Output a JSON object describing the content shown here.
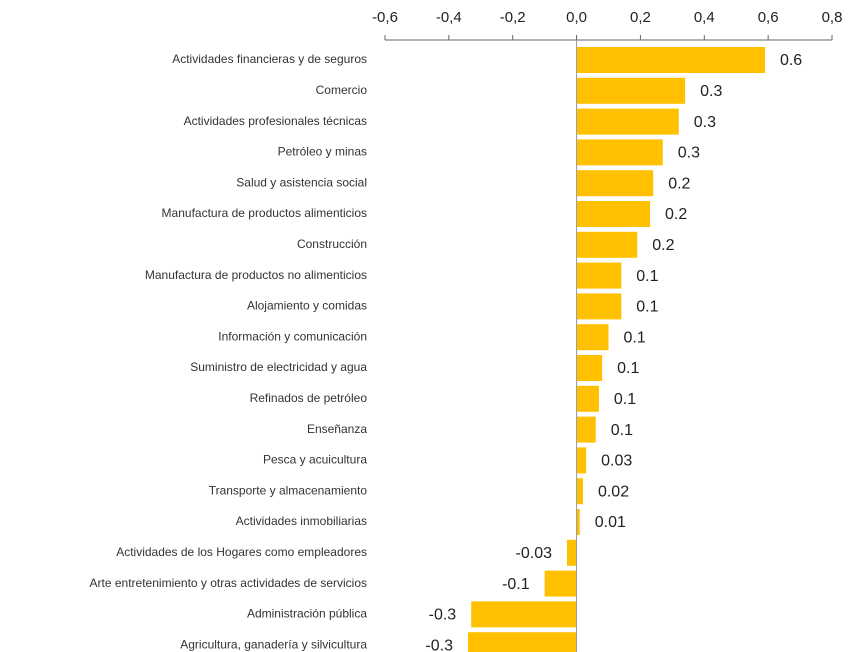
{
  "chart_data": {
    "type": "bar",
    "orientation": "horizontal",
    "color": "#ffc000",
    "categories": [
      "Actividades financieras y de seguros",
      "Comercio",
      "Actividades profesionales técnicas",
      "Petróleo y minas",
      "Salud y asistencia social",
      "Manufactura de productos alimenticios",
      "Construcción",
      "Manufactura de productos no alimenticios",
      "Alojamiento y comidas",
      "Información y comunicación",
      "Suministro de electricidad y agua",
      "Refinados de petróleo",
      "Enseñanza",
      "Pesca y acuicultura",
      "Transporte y almacenamiento",
      "Actividades inmobiliarias",
      "Actividades de los Hogares como empleadores",
      "Arte entretenimiento y otras actividades de servicios",
      "Administración pública",
      "Agricultura, ganadería y silvicultura"
    ],
    "values": [
      0.59,
      0.34,
      0.32,
      0.27,
      0.24,
      0.23,
      0.19,
      0.14,
      0.14,
      0.1,
      0.08,
      0.07,
      0.06,
      0.03,
      0.02,
      0.01,
      -0.03,
      -0.1,
      -0.33,
      -0.34
    ],
    "value_labels": [
      "0.6",
      "0.3",
      "0.3",
      "0.3",
      "0.2",
      "0.2",
      "0.2",
      "0.1",
      "0.1",
      "0.1",
      "0.1",
      "0.1",
      "0.1",
      "0.03",
      "0.02",
      "0.01",
      "-0.03",
      "-0.1",
      "-0.3",
      "-0.3"
    ],
    "xlim": [
      -0.6,
      0.8
    ],
    "xticks": [
      {
        "value": -0.6,
        "label": "-0,6"
      },
      {
        "value": -0.4,
        "label": "-0,4"
      },
      {
        "value": -0.2,
        "label": "-0,2"
      },
      {
        "value": 0,
        "label": "0,0"
      },
      {
        "value": 0.2,
        "label": "0,2"
      },
      {
        "value": 0.4,
        "label": "0,4"
      },
      {
        "value": 0.6,
        "label": "0,6"
      },
      {
        "value": 0.8,
        "label": "0,8"
      }
    ]
  }
}
